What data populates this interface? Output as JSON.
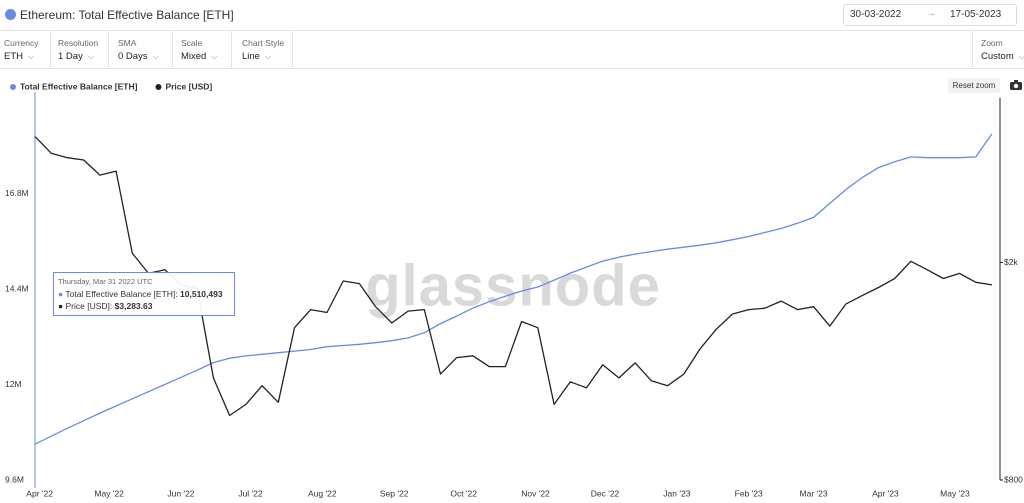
{
  "header": {
    "title": "Ethereum: Total Effective Balance [ETH]",
    "date_from": "30-03-2022",
    "date_to": "17-05-2023"
  },
  "controls": [
    {
      "label": "Currency",
      "value": "ETH"
    },
    {
      "label": "Resolution",
      "value": "1 Day"
    },
    {
      "label": "SMA",
      "value": "0 Days"
    },
    {
      "label": "Scale",
      "value": "Mixed"
    },
    {
      "label": "Chart Style",
      "value": "Line"
    },
    {
      "label": "Zoom",
      "value": "Custom"
    }
  ],
  "reset_zoom": "Reset zoom",
  "chart_data": {
    "type": "line",
    "watermark": "glassnode",
    "x": [
      "2022-03-30",
      "2022-04-06",
      "2022-04-13",
      "2022-04-20",
      "2022-04-27",
      "2022-05-04",
      "2022-05-11",
      "2022-05-18",
      "2022-05-25",
      "2022-06-01",
      "2022-06-08",
      "2022-06-15",
      "2022-06-22",
      "2022-06-29",
      "2022-07-06",
      "2022-07-13",
      "2022-07-20",
      "2022-07-27",
      "2022-08-03",
      "2022-08-10",
      "2022-08-17",
      "2022-08-24",
      "2022-08-31",
      "2022-09-07",
      "2022-09-14",
      "2022-09-21",
      "2022-09-28",
      "2022-10-05",
      "2022-10-12",
      "2022-10-19",
      "2022-10-26",
      "2022-11-02",
      "2022-11-09",
      "2022-11-16",
      "2022-11-23",
      "2022-11-30",
      "2022-12-07",
      "2022-12-14",
      "2022-12-21",
      "2022-12-28",
      "2023-01-04",
      "2023-01-11",
      "2023-01-18",
      "2023-01-25",
      "2023-02-01",
      "2023-02-08",
      "2023-02-15",
      "2023-02-22",
      "2023-03-01",
      "2023-03-08",
      "2023-03-15",
      "2023-03-22",
      "2023-03-29",
      "2023-04-05",
      "2023-04-12",
      "2023-04-19",
      "2023-04-26",
      "2023-05-03",
      "2023-05-10",
      "2023-05-17"
    ],
    "xlim": [
      "2022-03-30",
      "2023-05-17"
    ],
    "xticks": [
      {
        "value": "2022-04-01",
        "label": "Apr '22"
      },
      {
        "value": "2022-05-01",
        "label": "May '22"
      },
      {
        "value": "2022-06-01",
        "label": "Jun '22"
      },
      {
        "value": "2022-07-01",
        "label": "Jul '22"
      },
      {
        "value": "2022-08-01",
        "label": "Aug '22"
      },
      {
        "value": "2022-09-01",
        "label": "Sep '22"
      },
      {
        "value": "2022-10-01",
        "label": "Oct '22"
      },
      {
        "value": "2022-11-01",
        "label": "Nov '22"
      },
      {
        "value": "2022-12-01",
        "label": "Dec '22"
      },
      {
        "value": "2023-01-01",
        "label": "Jan '23"
      },
      {
        "value": "2023-02-01",
        "label": "Feb '23"
      },
      {
        "value": "2023-03-01",
        "label": "Mar '23"
      },
      {
        "value": "2023-04-01",
        "label": "Apr '23"
      },
      {
        "value": "2023-05-01",
        "label": "May '23"
      }
    ],
    "ylim": [
      9600000,
      19200000
    ],
    "yticks": [
      {
        "value": 9600000,
        "label": "9.6M"
      },
      {
        "value": 12000000,
        "label": "12M"
      },
      {
        "value": 14400000,
        "label": "14.4M"
      },
      {
        "value": 16800000,
        "label": "16.8M"
      }
    ],
    "y2lim": [
      800,
      4000
    ],
    "y2scale": "log",
    "y2ticks": [
      {
        "value": 800,
        "label": "$800"
      },
      {
        "value": 2000,
        "label": "$2k"
      }
    ],
    "grid": false,
    "series": [
      {
        "name": "Total Effective Balance [ETH]",
        "color": "#6a89e6",
        "values": [
          10500000,
          10700000,
          10900000,
          11090000,
          11280000,
          11460000,
          11640000,
          11820000,
          12000000,
          12180000,
          12360000,
          12550000,
          12660000,
          12720000,
          12760000,
          12800000,
          12840000,
          12880000,
          12950000,
          12980000,
          13010000,
          13050000,
          13100000,
          13170000,
          13300000,
          13530000,
          13720000,
          13920000,
          14080000,
          14220000,
          14350000,
          14450000,
          14620000,
          14800000,
          14950000,
          15100000,
          15200000,
          15280000,
          15340000,
          15400000,
          15450000,
          15500000,
          15560000,
          15640000,
          15720000,
          15820000,
          15920000,
          16050000,
          16200000,
          16550000,
          16900000,
          17200000,
          17450000,
          17600000,
          17720000,
          17700000,
          17700000,
          17700000,
          17720000,
          18300000
        ]
      },
      {
        "name": "Price [USD]",
        "color": "#222222",
        "axis": "y2",
        "values": [
          3400,
          3170,
          3110,
          3080,
          2890,
          2940,
          2080,
          1910,
          1940,
          1820,
          1790,
          1230,
          1050,
          1100,
          1190,
          1110,
          1520,
          1640,
          1620,
          1850,
          1830,
          1660,
          1550,
          1630,
          1640,
          1250,
          1340,
          1350,
          1290,
          1290,
          1560,
          1520,
          1100,
          1210,
          1180,
          1300,
          1230,
          1310,
          1215,
          1190,
          1250,
          1390,
          1510,
          1610,
          1640,
          1650,
          1700,
          1640,
          1660,
          1530,
          1680,
          1740,
          1800,
          1870,
          2010,
          1940,
          1870,
          1910,
          1840,
          1820
        ]
      }
    ],
    "tooltip": {
      "date": "Thursday, Mar 31 2022 UTC",
      "rows": [
        {
          "label": "Total Effective Balance [ETH]:",
          "value": "10,510,493"
        },
        {
          "label": "Price [USD]:",
          "value": "$3,283.63"
        }
      ]
    }
  }
}
